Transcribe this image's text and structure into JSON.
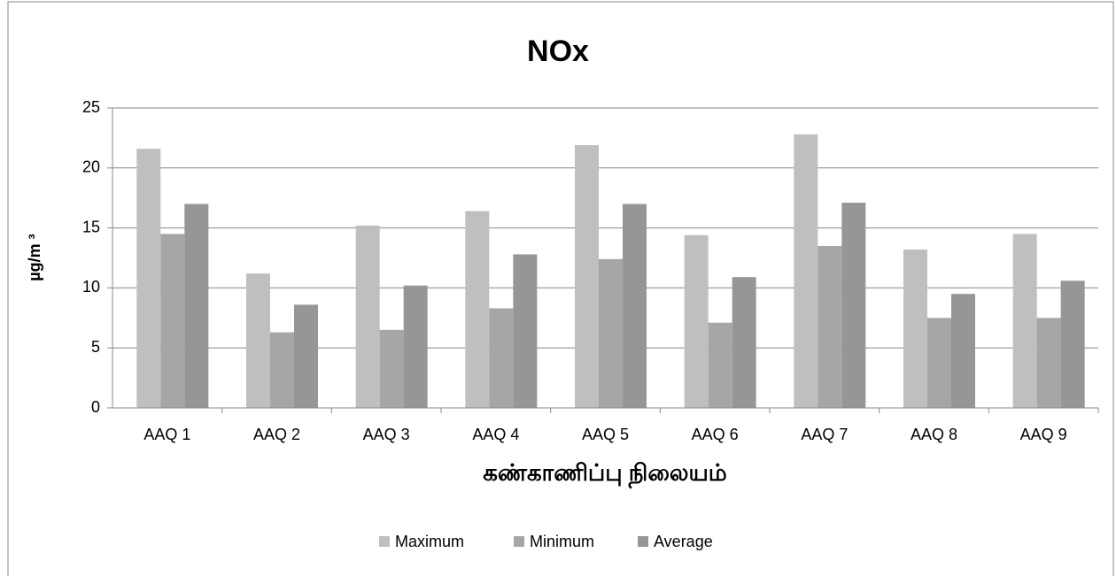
{
  "chart_data": {
    "type": "bar",
    "title": "NOx",
    "y_label": "µg/m ³",
    "x_label": "கண்காணிப்பு நிலையம்",
    "categories": [
      "AAQ 1",
      "AAQ 2",
      "AAQ 3",
      "AAQ 4",
      "AAQ 5",
      "AAQ 6",
      "AAQ 7",
      "AAQ 8",
      "AAQ 9"
    ],
    "series": [
      {
        "name": "Maximum",
        "color": "#bfbfbf",
        "values": [
          21.6,
          11.2,
          15.2,
          16.4,
          21.9,
          14.4,
          22.8,
          13.2,
          14.5
        ]
      },
      {
        "name": "Minimum",
        "color": "#a6a6a6",
        "values": [
          14.5,
          6.3,
          6.5,
          8.3,
          12.4,
          7.1,
          13.5,
          7.5,
          7.5
        ]
      },
      {
        "name": "Average",
        "color": "#969696",
        "values": [
          17.0,
          8.6,
          10.2,
          12.8,
          17.0,
          10.9,
          17.1,
          9.5,
          10.6
        ]
      }
    ],
    "ylim": [
      0,
      25
    ],
    "yticks": [
      0,
      5,
      10,
      15,
      20,
      25
    ],
    "grid": true,
    "legend": "bottom"
  }
}
